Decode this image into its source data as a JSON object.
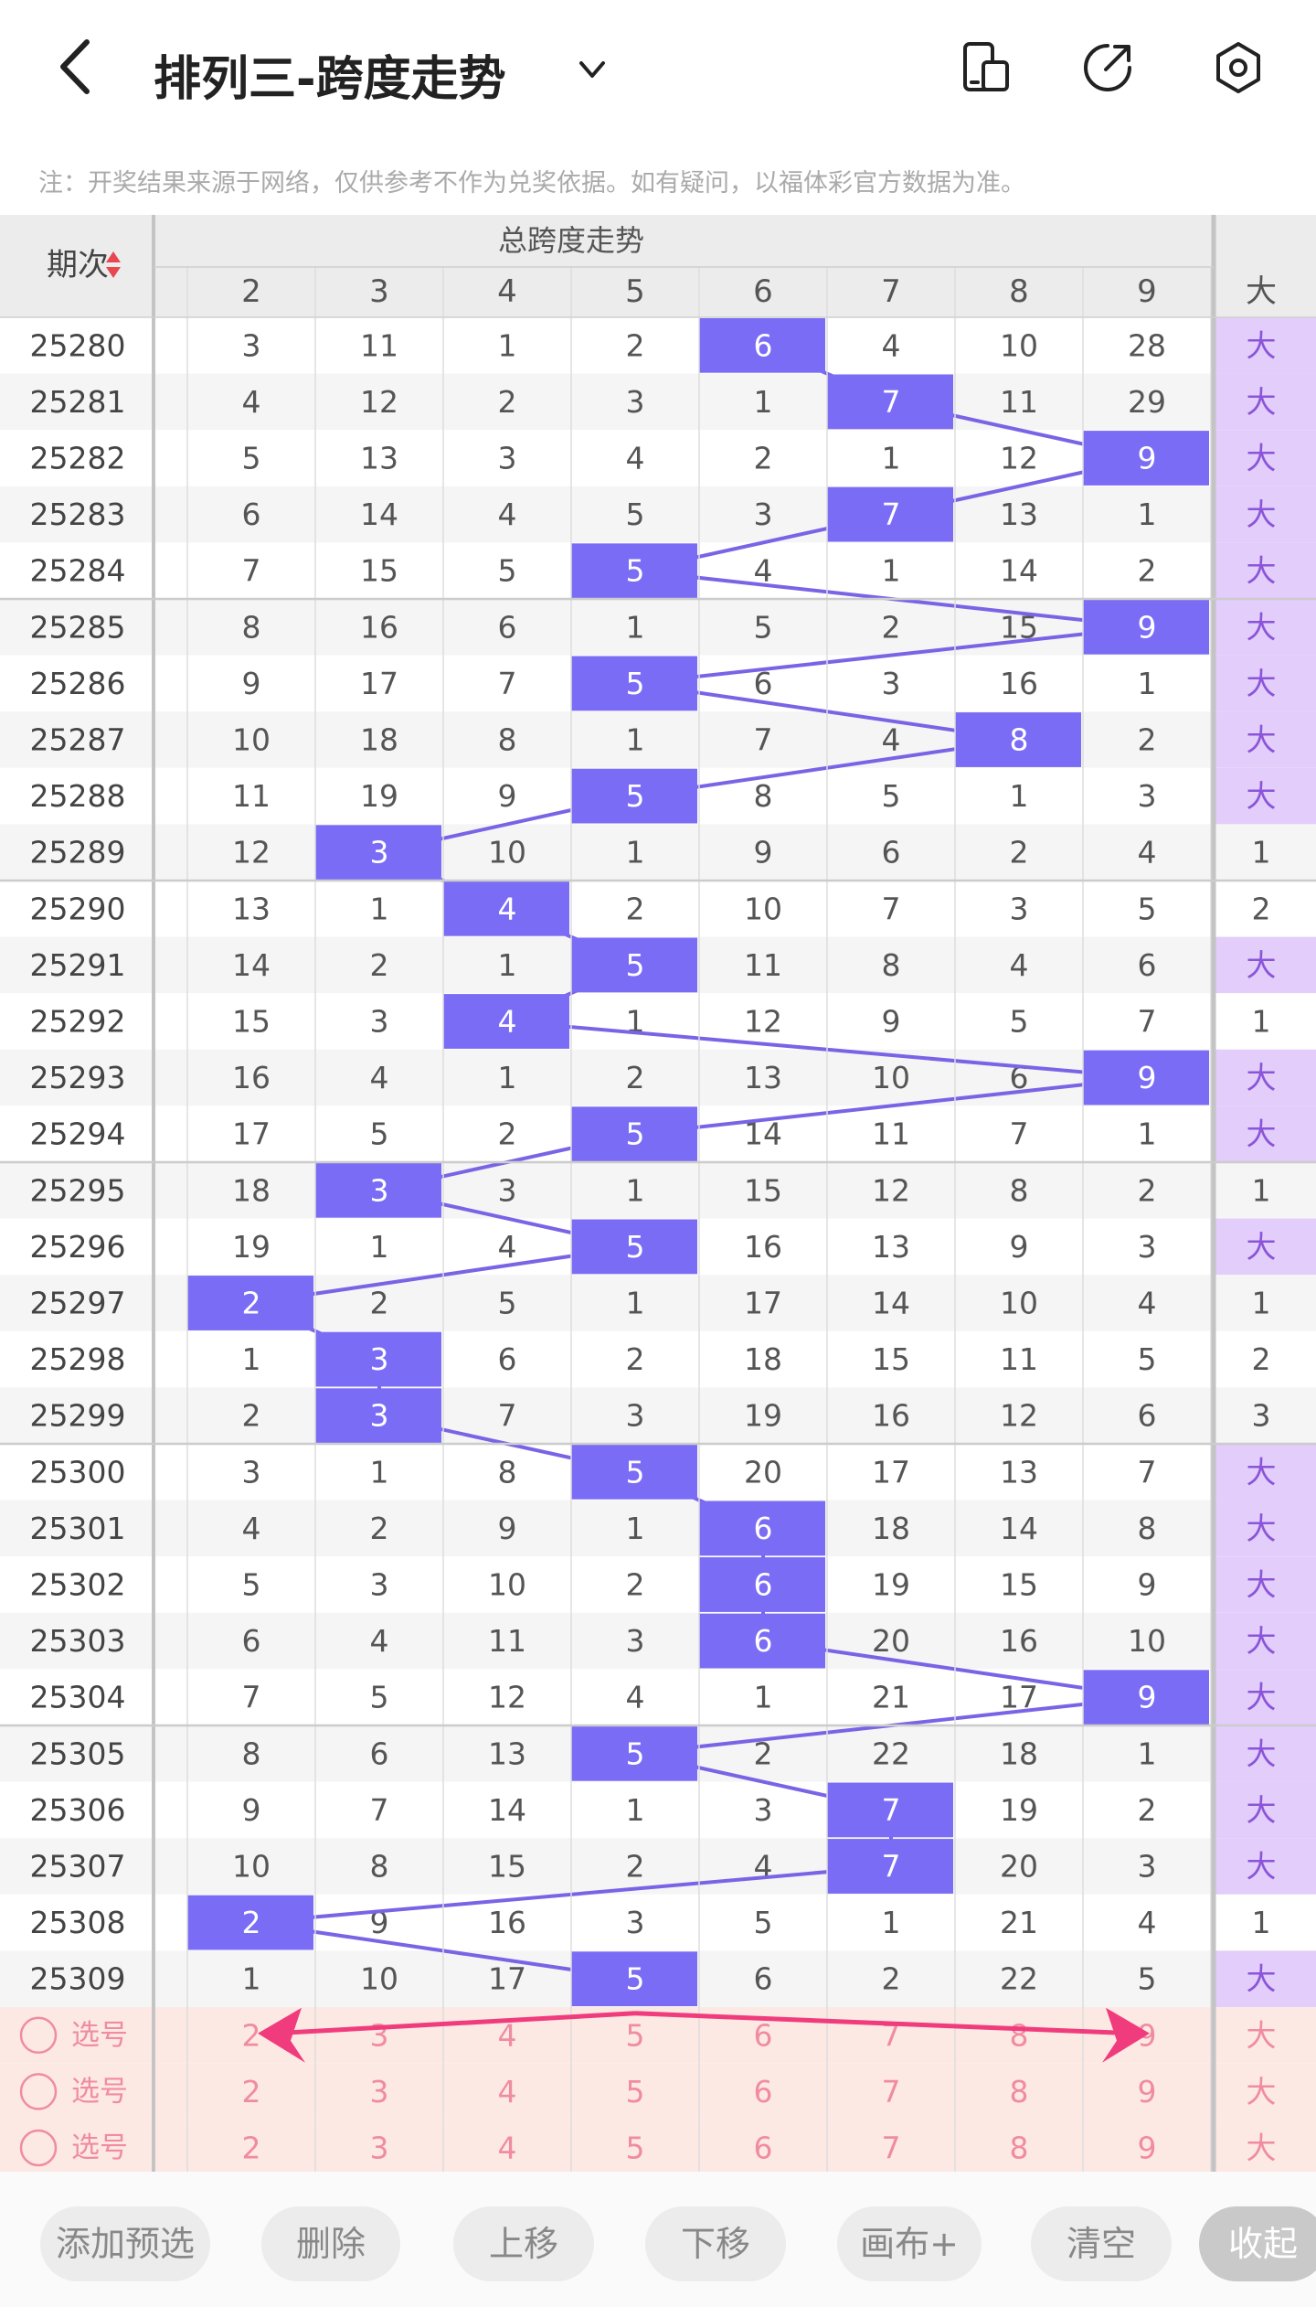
{
  "header": {
    "title": "排列三-跨度走势",
    "icons": [
      "back-icon",
      "chevron-down-icon",
      "device-icon",
      "share-icon",
      "settings-icon"
    ]
  },
  "notice": "注：开奖结果来源于网络，仅供参考不作为兑奖依据。如有疑问，以福体彩官方数据为准。",
  "table": {
    "period_label": "期次",
    "group_title": "总跨度走势",
    "columns": [
      "2",
      "3",
      "4",
      "5",
      "6",
      "7",
      "8",
      "9"
    ],
    "extra_header": "大",
    "rows": [
      {
        "period": "25280",
        "cells": [
          "3",
          "11",
          "1",
          "2",
          "6",
          "4",
          "10",
          "28"
        ],
        "hit": 4,
        "extra": "大"
      },
      {
        "period": "25281",
        "cells": [
          "4",
          "12",
          "2",
          "3",
          "1",
          "7",
          "11",
          "29"
        ],
        "hit": 5,
        "extra": "大"
      },
      {
        "period": "25282",
        "cells": [
          "5",
          "13",
          "3",
          "4",
          "2",
          "1",
          "12",
          "9"
        ],
        "hit": 7,
        "extra": "大"
      },
      {
        "period": "25283",
        "cells": [
          "6",
          "14",
          "4",
          "5",
          "3",
          "7",
          "13",
          "1"
        ],
        "hit": 5,
        "extra": "大"
      },
      {
        "period": "25284",
        "cells": [
          "7",
          "15",
          "5",
          "5",
          "4",
          "1",
          "14",
          "2"
        ],
        "hit": 3,
        "extra": "大"
      },
      {
        "period": "25285",
        "cells": [
          "8",
          "16",
          "6",
          "1",
          "5",
          "2",
          "15",
          "9"
        ],
        "hit": 7,
        "extra": "大"
      },
      {
        "period": "25286",
        "cells": [
          "9",
          "17",
          "7",
          "5",
          "6",
          "3",
          "16",
          "1"
        ],
        "hit": 3,
        "extra": "大"
      },
      {
        "period": "25287",
        "cells": [
          "10",
          "18",
          "8",
          "1",
          "7",
          "4",
          "8",
          "2"
        ],
        "hit": 6,
        "extra": "大"
      },
      {
        "period": "25288",
        "cells": [
          "11",
          "19",
          "9",
          "5",
          "8",
          "5",
          "1",
          "3"
        ],
        "hit": 3,
        "extra": "大"
      },
      {
        "period": "25289",
        "cells": [
          "12",
          "3",
          "10",
          "1",
          "9",
          "6",
          "2",
          "4"
        ],
        "hit": 1,
        "extra": "1"
      },
      {
        "period": "25290",
        "cells": [
          "13",
          "1",
          "4",
          "2",
          "10",
          "7",
          "3",
          "5"
        ],
        "hit": 2,
        "extra": "2"
      },
      {
        "period": "25291",
        "cells": [
          "14",
          "2",
          "1",
          "5",
          "11",
          "8",
          "4",
          "6"
        ],
        "hit": 3,
        "extra": "大"
      },
      {
        "period": "25292",
        "cells": [
          "15",
          "3",
          "4",
          "1",
          "12",
          "9",
          "5",
          "7"
        ],
        "hit": 2,
        "extra": "1"
      },
      {
        "period": "25293",
        "cells": [
          "16",
          "4",
          "1",
          "2",
          "13",
          "10",
          "6",
          "9"
        ],
        "hit": 7,
        "extra": "大"
      },
      {
        "period": "25294",
        "cells": [
          "17",
          "5",
          "2",
          "5",
          "14",
          "11",
          "7",
          "1"
        ],
        "hit": 3,
        "extra": "大"
      },
      {
        "period": "25295",
        "cells": [
          "18",
          "3",
          "3",
          "1",
          "15",
          "12",
          "8",
          "2"
        ],
        "hit": 1,
        "extra": "1"
      },
      {
        "period": "25296",
        "cells": [
          "19",
          "1",
          "4",
          "5",
          "16",
          "13",
          "9",
          "3"
        ],
        "hit": 3,
        "extra": "大"
      },
      {
        "period": "25297",
        "cells": [
          "2",
          "2",
          "5",
          "1",
          "17",
          "14",
          "10",
          "4"
        ],
        "hit": 0,
        "extra": "1"
      },
      {
        "period": "25298",
        "cells": [
          "1",
          "3",
          "6",
          "2",
          "18",
          "15",
          "11",
          "5"
        ],
        "hit": 1,
        "extra": "2"
      },
      {
        "period": "25299",
        "cells": [
          "2",
          "3",
          "7",
          "3",
          "19",
          "16",
          "12",
          "6"
        ],
        "hit": 1,
        "extra": "3"
      },
      {
        "period": "25300",
        "cells": [
          "3",
          "1",
          "8",
          "5",
          "20",
          "17",
          "13",
          "7"
        ],
        "hit": 3,
        "extra": "大"
      },
      {
        "period": "25301",
        "cells": [
          "4",
          "2",
          "9",
          "1",
          "6",
          "18",
          "14",
          "8"
        ],
        "hit": 4,
        "extra": "大"
      },
      {
        "period": "25302",
        "cells": [
          "5",
          "3",
          "10",
          "2",
          "6",
          "19",
          "15",
          "9"
        ],
        "hit": 4,
        "extra": "大"
      },
      {
        "period": "25303",
        "cells": [
          "6",
          "4",
          "11",
          "3",
          "6",
          "20",
          "16",
          "10"
        ],
        "hit": 4,
        "extra": "大"
      },
      {
        "period": "25304",
        "cells": [
          "7",
          "5",
          "12",
          "4",
          "1",
          "21",
          "17",
          "9"
        ],
        "hit": 7,
        "extra": "大"
      },
      {
        "period": "25305",
        "cells": [
          "8",
          "6",
          "13",
          "5",
          "2",
          "22",
          "18",
          "1"
        ],
        "hit": 3,
        "extra": "大"
      },
      {
        "period": "25306",
        "cells": [
          "9",
          "7",
          "14",
          "1",
          "3",
          "7",
          "19",
          "2"
        ],
        "hit": 5,
        "extra": "大"
      },
      {
        "period": "25307",
        "cells": [
          "10",
          "8",
          "15",
          "2",
          "4",
          "7",
          "20",
          "3"
        ],
        "hit": 5,
        "extra": "大"
      },
      {
        "period": "25308",
        "cells": [
          "2",
          "9",
          "16",
          "3",
          "5",
          "1",
          "21",
          "4"
        ],
        "hit": 0,
        "extra": "1"
      },
      {
        "period": "25309",
        "cells": [
          "1",
          "10",
          "17",
          "5",
          "6",
          "2",
          "22",
          "5"
        ],
        "hit": 3,
        "extra": "大"
      }
    ],
    "select_rows": [
      {
        "label": "选号",
        "cells": [
          "2",
          "3",
          "4",
          "5",
          "6",
          "7",
          "8",
          "9"
        ],
        "extra": "大"
      },
      {
        "label": "选号",
        "cells": [
          "2",
          "3",
          "4",
          "5",
          "6",
          "7",
          "8",
          "9"
        ],
        "extra": "大"
      },
      {
        "label": "选号",
        "cells": [
          "2",
          "3",
          "4",
          "5",
          "6",
          "7",
          "8",
          "9"
        ],
        "extra": "大"
      }
    ]
  },
  "buttons": [
    "添加预选",
    "删除",
    "上移",
    "下移",
    "画布+",
    "清空",
    "收起"
  ],
  "colors": {
    "hit": "#7b6cf6",
    "trend_line": "#7b63e6",
    "extra_bg": "#e2cdfb",
    "extra_text": "#8a55d8",
    "select_bg": "#fde9e4",
    "select_text": "#f08ca0",
    "arrow": "#f03c7c",
    "alt_row": "#f5f5f5",
    "header_bg": "#ececec"
  }
}
